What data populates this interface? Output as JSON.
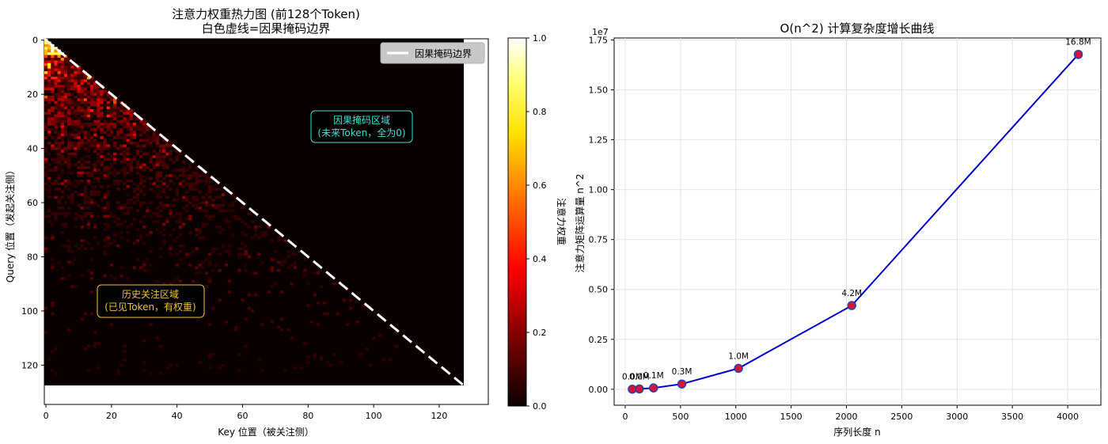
{
  "heatmap": {
    "title_line1": "注意力权重热力图 (前128个Token)",
    "title_line2": "白色虚线=因果掩码边界",
    "xlabel": "Key 位置（被关注侧）",
    "ylabel": "Query 位置（发起关注侧）",
    "x_ticks": [
      "0",
      "20",
      "40",
      "60",
      "80",
      "100",
      "120"
    ],
    "y_ticks": [
      "0",
      "20",
      "40",
      "60",
      "80",
      "100",
      "120"
    ],
    "legend_label": "因果掩码边界",
    "annotation_masked_line1": "因果掩码区域",
    "annotation_masked_line2": "(未来Token，全为0)",
    "annotation_history_line1": "历史关注区域",
    "annotation_history_line2": "(已见Token，有权重)",
    "colorbar_label": "注意力权重",
    "colorbar_ticks": [
      "0.0",
      "0.2",
      "0.4",
      "0.6",
      "0.8",
      "1.0"
    ],
    "colors": {
      "boundary": "#ffffff",
      "masked_annotation": "#40e0d0",
      "history_annotation": "#f0c040"
    }
  },
  "complexity": {
    "title": "O(n^2) 计算复杂度增长曲线",
    "xlabel": "序列长度 n",
    "ylabel": "注意力矩阵运算量 n^2",
    "offset_text": "1e7",
    "x_ticks": [
      "0",
      "500",
      "1000",
      "1500",
      "2000",
      "2500",
      "3000",
      "3500",
      "4000"
    ],
    "y_ticks": [
      "0.00",
      "0.25",
      "0.50",
      "0.75",
      "1.00",
      "1.25",
      "1.50",
      "1.75"
    ],
    "colors": {
      "line": "#0000cc",
      "marker_face": "#dd1133",
      "marker_edge": "#2244aa"
    }
  },
  "chart_data": [
    {
      "type": "heatmap",
      "title": "注意力权重热力图 (前128个Token)\n白色虚线=因果掩码边界",
      "xlabel": "Key 位置（被关注侧）",
      "ylabel": "Query 位置（发起关注侧）",
      "size": [
        128,
        128
      ],
      "mask": "causal (upper triangle = 0)",
      "value_range": [
        0.0,
        1.0
      ],
      "colormap": "hot",
      "xlim": [
        0,
        135
      ],
      "ylim": [
        135,
        0
      ],
      "legend": [
        "因果掩码边界"
      ],
      "legend_position": "upper-right",
      "diagonal_pattern": "weights concentrated near start, decaying along rows"
    },
    {
      "type": "line",
      "title": "O(n^2) 计算复杂度增长曲线",
      "xlabel": "序列长度 n",
      "ylabel": "注意力矩阵运算量 n^2",
      "x": [
        64,
        128,
        256,
        512,
        1024,
        2048,
        4096
      ],
      "y": [
        4096,
        16384,
        65536,
        262144,
        1048576,
        4194304,
        16777216
      ],
      "data_labels": [
        "0.0M",
        "0.0M",
        "0.1M",
        "0.3M",
        "1.0M",
        "4.2M",
        "16.8M"
      ],
      "xlim": [
        -100,
        4300
      ],
      "ylim": [
        -800000.0,
        17600000.0
      ],
      "y_scale_note": "1e7",
      "grid": true
    }
  ]
}
